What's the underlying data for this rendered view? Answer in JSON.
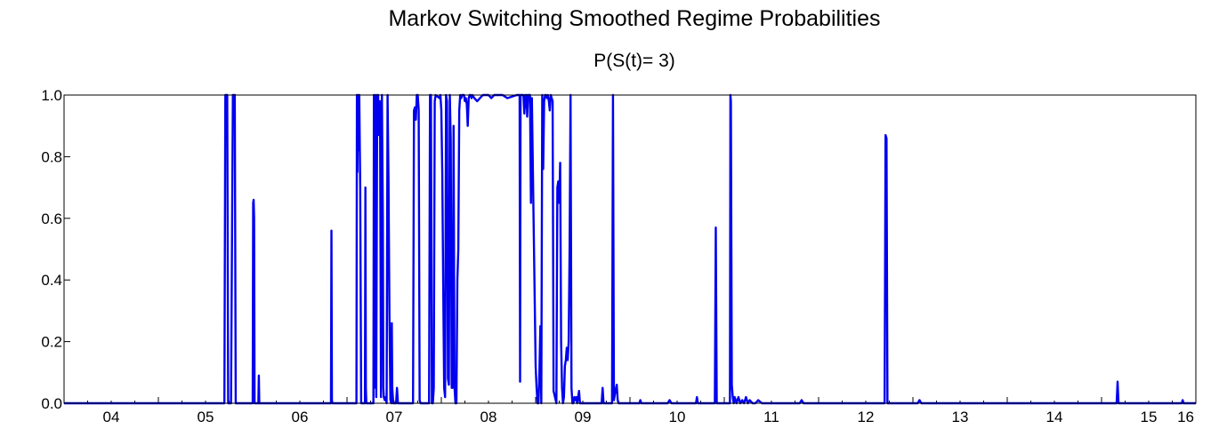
{
  "chart_data": {
    "type": "line",
    "title": "Markov Switching Smoothed Regime Probabilities",
    "subtitle": "P(S(t)= 3)",
    "xlabel": "",
    "ylabel": "",
    "ylim": [
      0.0,
      1.0
    ],
    "xlim": [
      2004.0,
      2016.0
    ],
    "yticks": [
      "0.0",
      "0.2",
      "0.4",
      "0.6",
      "0.8",
      "1.0"
    ],
    "xticks": [
      "04",
      "05",
      "06",
      "07",
      "08",
      "09",
      "10",
      "11",
      "12",
      "13",
      "14",
      "15",
      "16"
    ],
    "grid": false,
    "legend": "none",
    "line_color": "#0000ee",
    "series": [
      {
        "x": [
          2004.0,
          2005.7,
          2005.71,
          2005.73,
          2005.74,
          2005.76,
          2005.77,
          2005.79,
          2005.8,
          2005.81,
          2005.82,
          2005.83,
          2006.0,
          2006.005,
          2006.01,
          2006.015,
          2006.02,
          2006.025,
          2006.06,
          2006.065,
          2006.07,
          2006.075,
          2006.83,
          2006.835,
          2006.84,
          2006.845,
          2007.1,
          2007.105,
          2007.11,
          2007.115,
          2007.12,
          2007.13,
          2007.14,
          2007.15,
          2007.155,
          2007.16,
          2007.19,
          2007.195,
          2007.2,
          2007.205,
          2007.28,
          2007.285,
          2007.29,
          2007.3,
          2007.31,
          2007.32,
          2007.325,
          2007.33,
          2007.34,
          2007.35,
          2007.36,
          2007.37,
          2007.38,
          2007.385,
          2007.39,
          2007.4,
          2007.41,
          2007.42,
          2007.43,
          2007.44,
          2007.45,
          2007.46,
          2007.47,
          2007.475,
          2007.48,
          2007.49,
          2007.5,
          2007.52,
          2007.53,
          2007.54,
          2007.545,
          2007.55,
          2007.56,
          2007.57,
          2007.58,
          2007.59,
          2007.6,
          2007.61,
          2007.62,
          2007.7,
          2007.71,
          2007.72,
          2007.73,
          2007.74,
          2007.75,
          2007.76,
          2007.77,
          2007.78,
          2007.79,
          2007.8,
          2007.81,
          2007.86,
          2007.87,
          2007.88,
          2007.89,
          2007.9,
          2007.91,
          2007.92,
          2007.93,
          2007.94,
          2007.98,
          2007.99,
          2008.0,
          2008.01,
          2008.02,
          2008.03,
          2008.04,
          2008.05,
          2008.06,
          2008.07,
          2008.08,
          2008.09,
          2008.1,
          2008.11,
          2008.12,
          2008.13,
          2008.14,
          2008.15,
          2008.16,
          2008.17,
          2008.18,
          2008.19,
          2008.2,
          2008.21,
          2008.22,
          2008.24,
          2008.25,
          2008.26,
          2008.27,
          2008.28,
          2008.29,
          2008.3,
          2008.31,
          2008.32,
          2008.33,
          2008.35,
          2008.38,
          2008.41,
          2008.44,
          2008.47,
          2008.5,
          2008.53,
          2008.56,
          2008.59,
          2008.62,
          2008.65,
          2008.7,
          2008.8,
          2008.83,
          2008.835,
          2008.84,
          2008.845,
          2008.85,
          2008.87,
          2008.88,
          2008.89,
          2008.895,
          2008.9,
          2008.905,
          2008.91,
          2008.92,
          2008.93,
          2008.94,
          2008.95,
          2008.96,
          2009.0,
          2009.01,
          2009.02,
          2009.03,
          2009.04,
          2009.05,
          2009.06,
          2009.07,
          2009.08,
          2009.09,
          2009.1,
          2009.11,
          2009.12,
          2009.13,
          2009.14,
          2009.15,
          2009.16,
          2009.17,
          2009.18,
          2009.19,
          2009.22,
          2009.23,
          2009.24,
          2009.25,
          2009.26,
          2009.27,
          2009.28,
          2009.29,
          2009.3,
          2009.31,
          2009.32,
          2009.33,
          2009.34,
          2009.35,
          2009.36,
          2009.37,
          2009.38,
          2009.39,
          2009.4,
          2009.41,
          2009.42,
          2009.43,
          2009.44,
          2009.46,
          2009.47,
          2009.48,
          2009.5,
          2009.7,
          2009.71,
          2009.72,
          2009.73,
          2009.8,
          2009.81,
          2009.82,
          2009.83,
          2009.84,
          2009.86,
          2009.87,
          2009.88,
          2009.9,
          2010.1,
          2010.11,
          2010.12,
          2010.4,
          2010.42,
          2010.44,
          2010.7,
          2010.71,
          2010.72,
          2010.73,
          2010.9,
          2010.91,
          2010.92,
          2010.93,
          2011.0,
          2011.06,
          2011.065,
          2011.07,
          2011.08,
          2011.09,
          2011.1,
          2011.11,
          2011.12,
          2011.13,
          2011.15,
          2011.17,
          2011.19,
          2011.21,
          2011.23,
          2011.25,
          2011.27,
          2011.3,
          2011.33,
          2011.36,
          2011.4,
          2011.45,
          2011.5,
          2011.55,
          2011.6,
          2011.8,
          2011.82,
          2011.84,
          2012.7,
          2012.71,
          2012.72,
          2012.73,
          2012.74,
          2012.75,
          2012.76,
          2013.0,
          2013.05,
          2013.07,
          2013.09,
          2015.0,
          2015.16,
          2015.17,
          2015.18,
          2015.19,
          2015.85,
          2015.86,
          2015.87,
          2016.0
        ],
        "y": [
          0.0,
          0.0,
          1.0,
          1.0,
          0.0,
          0.0,
          0.0,
          1.0,
          1.0,
          1.0,
          0.0,
          0.0,
          0.0,
          0.65,
          0.66,
          0.6,
          0.0,
          0.0,
          0.0,
          0.09,
          0.0,
          0.0,
          0.0,
          0.56,
          0.01,
          0.0,
          0.0,
          1.0,
          0.75,
          1.0,
          0.82,
          1.0,
          0.7,
          0.0,
          0.0,
          0.0,
          0.0,
          0.7,
          0.05,
          0.0,
          0.0,
          1.0,
          0.05,
          1.0,
          0.02,
          1.0,
          0.9,
          1.0,
          0.87,
          0.98,
          0.02,
          1.0,
          0.6,
          0.05,
          0.02,
          0.01,
          0.02,
          0.0,
          1.0,
          0.72,
          0.28,
          0.01,
          0.0,
          0.26,
          0.05,
          0.0,
          0.0,
          0.0,
          0.05,
          0.0,
          0.0,
          0.0,
          0.0,
          0.0,
          0.0,
          0.0,
          0.0,
          0.0,
          0.0,
          0.0,
          0.95,
          0.96,
          0.92,
          1.0,
          1.0,
          0.95,
          0.01,
          0.0,
          0.0,
          0.0,
          0.0,
          0.0,
          0.0,
          1.0,
          1.0,
          0.0,
          0.0,
          0.05,
          0.98,
          1.0,
          0.99,
          1.0,
          0.95,
          0.75,
          0.38,
          0.05,
          0.02,
          1.0,
          0.98,
          0.08,
          0.06,
          1.0,
          0.85,
          0.05,
          0.05,
          0.9,
          0.05,
          0.0,
          0.0,
          0.4,
          0.5,
          0.95,
          1.0,
          0.99,
          1.0,
          1.0,
          0.98,
          0.99,
          0.97,
          0.9,
          0.99,
          1.0,
          1.0,
          0.99,
          1.0,
          0.99,
          0.98,
          0.99,
          1.0,
          1.0,
          1.0,
          0.99,
          1.0,
          1.0,
          1.0,
          1.0,
          0.99,
          1.0,
          1.0,
          0.07,
          1.0,
          1.0,
          1.0,
          1.0,
          0.94,
          1.0,
          0.96,
          1.0,
          1.0,
          0.93,
          1.0,
          1.0,
          1.0,
          0.65,
          0.99,
          0.12,
          0.05,
          0.0,
          0.0,
          0.1,
          0.25,
          0.0,
          1.0,
          0.76,
          0.98,
          1.0,
          1.0,
          0.99,
          1.0,
          0.98,
          0.95,
          1.0,
          0.99,
          0.98,
          0.04,
          0.0,
          0.7,
          0.72,
          0.65,
          0.78,
          0.2,
          0.05,
          0.0,
          0.02,
          0.12,
          0.14,
          0.18,
          0.14,
          0.2,
          0.5,
          1.0,
          0.05,
          0.0,
          0.0,
          0.02,
          0.01,
          0.02,
          0.0,
          0.04,
          0.0,
          0.0,
          0.0,
          0.0,
          0.05,
          0.0,
          0.0,
          0.0,
          0.0,
          1.0,
          0.01,
          0.03,
          0.06,
          0.01,
          0.0,
          0.0,
          0.0,
          0.01,
          0.0,
          0.0,
          0.01,
          0.0,
          0.0,
          0.02,
          0.0,
          0.0,
          0.0,
          0.57,
          0.0,
          0.0,
          0.0,
          0.0,
          1.0,
          0.98,
          0.06,
          0.02,
          0.0,
          0.02,
          0.01,
          0.0,
          0.02,
          0.0,
          0.01,
          0.0,
          0.02,
          0.0,
          0.01,
          0.0,
          0.0,
          0.01,
          0.0,
          0.0,
          0.0,
          0.0,
          0.0,
          0.0,
          0.01,
          0.0,
          0.0,
          0.87,
          0.86,
          0.0,
          0.0,
          0.0,
          0.0,
          0.0,
          0.0,
          0.01,
          0.0,
          0.0,
          0.0,
          0.07,
          0.0,
          0.0,
          0.0,
          0.01,
          0.0,
          0.0
        ]
      }
    ]
  }
}
